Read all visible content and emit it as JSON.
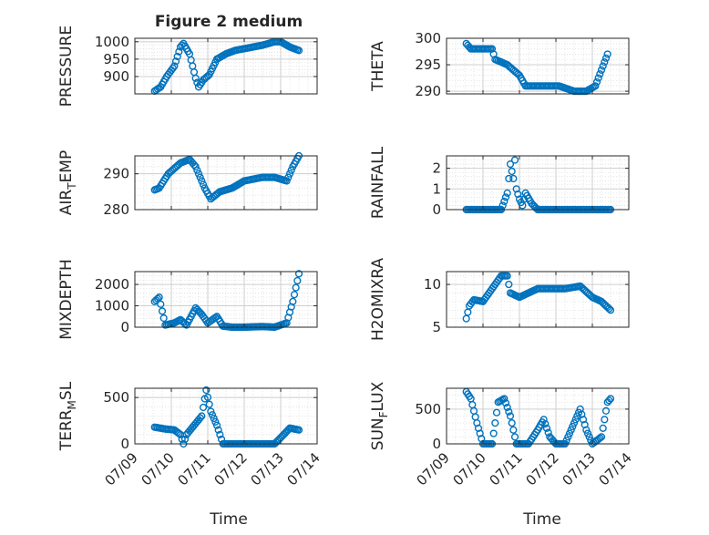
{
  "figure": {
    "title": "Figure 2 medium",
    "xlabel": "Time",
    "date_ticks": [
      "07/09",
      "07/10",
      "07/11",
      "07/12",
      "07/13",
      "07/14"
    ]
  },
  "colors": {
    "marker": "#0072BD",
    "axis": "#262626",
    "grid": "#dedede"
  },
  "chart_data": [
    {
      "type": "scatter",
      "id": "pressure",
      "ylabel": "PRESSURE",
      "ylim": [
        850,
        1010
      ],
      "yticks": [
        900,
        950,
        1000
      ],
      "xlim": [
        "07/09",
        "07/14"
      ],
      "points": [
        [
          "07/09 13:00",
          858
        ],
        [
          "07/09 17:00",
          870
        ],
        [
          "07/09 21:00",
          900
        ],
        [
          "07/10 02:00",
          930
        ],
        [
          "07/10 06:00",
          985
        ],
        [
          "07/10 08:00",
          995
        ],
        [
          "07/10 12:00",
          965
        ],
        [
          "07/10 16:00",
          895
        ],
        [
          "07/10 18:00",
          870
        ],
        [
          "07/10 21:00",
          890
        ],
        [
          "07/11 01:00",
          905
        ],
        [
          "07/11 06:00",
          950
        ],
        [
          "07/11 12:00",
          965
        ],
        [
          "07/11 18:00",
          975
        ],
        [
          "07/12 00:00",
          980
        ],
        [
          "07/12 12:00",
          990
        ],
        [
          "07/12 20:00",
          1000
        ],
        [
          "07/13 00:00",
          1000
        ],
        [
          "07/13 06:00",
          985
        ],
        [
          "07/13 12:00",
          975
        ]
      ]
    },
    {
      "type": "scatter",
      "id": "theta",
      "ylabel": "THETA",
      "ylim": [
        289.5,
        300
      ],
      "yticks": [
        290,
        295,
        300
      ],
      "xlim": [
        "07/09",
        "07/14"
      ],
      "points": [
        [
          "07/09 13:00",
          299
        ],
        [
          "07/09 16:00",
          298
        ],
        [
          "07/10 00:00",
          298
        ],
        [
          "07/10 06:00",
          298
        ],
        [
          "07/10 08:00",
          296
        ],
        [
          "07/10 16:00",
          295
        ],
        [
          "07/10 20:00",
          294
        ],
        [
          "07/11 00:00",
          293
        ],
        [
          "07/11 04:00",
          291
        ],
        [
          "07/11 12:00",
          291
        ],
        [
          "07/11 20:00",
          291
        ],
        [
          "07/12 02:00",
          291
        ],
        [
          "07/12 12:00",
          290
        ],
        [
          "07/12 20:00",
          290
        ],
        [
          "07/13 02:00",
          291
        ],
        [
          "07/13 06:00",
          294
        ],
        [
          "07/13 10:00",
          297
        ]
      ]
    },
    {
      "type": "scatter",
      "id": "air_temp",
      "ylabel": "AIR_TEMP",
      "ylim": [
        280,
        295
      ],
      "yticks": [
        280,
        290
      ],
      "xlim": [
        "07/09",
        "07/14"
      ],
      "points": [
        [
          "07/09 13:00",
          285.5
        ],
        [
          "07/09 16:00",
          286
        ],
        [
          "07/09 22:00",
          290
        ],
        [
          "07/10 06:00",
          293
        ],
        [
          "07/10 12:00",
          294
        ],
        [
          "07/10 16:00",
          292
        ],
        [
          "07/10 22:00",
          286
        ],
        [
          "07/11 02:00",
          283
        ],
        [
          "07/11 08:00",
          285
        ],
        [
          "07/11 16:00",
          286
        ],
        [
          "07/12 00:00",
          288
        ],
        [
          "07/12 12:00",
          289
        ],
        [
          "07/12 20:00",
          289
        ],
        [
          "07/13 04:00",
          288
        ],
        [
          "07/13 08:00",
          292
        ],
        [
          "07/13 12:00",
          295
        ]
      ]
    },
    {
      "type": "scatter",
      "id": "rainfall",
      "ylabel": "RAINFALL",
      "ylim": [
        0,
        2.6
      ],
      "yticks": [
        0,
        1,
        2
      ],
      "xlim": [
        "07/09",
        "07/14"
      ],
      "points": [
        [
          "07/09 13:00",
          0
        ],
        [
          "07/10 00:00",
          0
        ],
        [
          "07/10 12:00",
          0
        ],
        [
          "07/10 16:00",
          0.8
        ],
        [
          "07/10 18:00",
          2.2
        ],
        [
          "07/10 20:00",
          1.5
        ],
        [
          "07/10 21:00",
          2.4
        ],
        [
          "07/10 22:00",
          1.0
        ],
        [
          "07/11 00:00",
          0.5
        ],
        [
          "07/11 02:00",
          0.2
        ],
        [
          "07/11 04:00",
          0.8
        ],
        [
          "07/11 08:00",
          0.3
        ],
        [
          "07/11 12:00",
          0
        ],
        [
          "07/12 00:00",
          0
        ],
        [
          "07/12 12:00",
          0
        ],
        [
          "07/13 00:00",
          0
        ],
        [
          "07/13 12:00",
          0
        ]
      ]
    },
    {
      "type": "scatter",
      "id": "mixdepth",
      "ylabel": "MIXDEPTH",
      "ylim": [
        0,
        2600
      ],
      "yticks": [
        0,
        1000,
        2000
      ],
      "xlim": [
        "07/09",
        "07/14"
      ],
      "points": [
        [
          "07/09 13:00",
          1200
        ],
        [
          "07/09 16:00",
          1400
        ],
        [
          "07/09 20:00",
          100
        ],
        [
          "07/10 02:00",
          200
        ],
        [
          "07/10 06:00",
          350
        ],
        [
          "07/10 10:00",
          100
        ],
        [
          "07/10 16:00",
          900
        ],
        [
          "07/10 20:00",
          600
        ],
        [
          "07/11 00:00",
          200
        ],
        [
          "07/11 06:00",
          500
        ],
        [
          "07/11 10:00",
          50
        ],
        [
          "07/11 16:00",
          0
        ],
        [
          "07/12 00:00",
          0
        ],
        [
          "07/12 12:00",
          30
        ],
        [
          "07/12 20:00",
          0
        ],
        [
          "07/13 04:00",
          200
        ],
        [
          "07/13 08:00",
          1200
        ],
        [
          "07/13 12:00",
          2500
        ]
      ]
    },
    {
      "type": "scatter",
      "id": "h2omixra",
      "ylabel": "H2OMIXRA",
      "ylim": [
        5,
        11.5
      ],
      "yticks": [
        5,
        10
      ],
      "xlim": [
        "07/09",
        "07/14"
      ],
      "points": [
        [
          "07/09 13:00",
          6
        ],
        [
          "07/09 15:00",
          7.5
        ],
        [
          "07/09 18:00",
          8.2
        ],
        [
          "07/10 00:00",
          8
        ],
        [
          "07/10 06:00",
          9.5
        ],
        [
          "07/10 12:00",
          11
        ],
        [
          "07/10 16:00",
          11
        ],
        [
          "07/10 18:00",
          9
        ],
        [
          "07/11 00:00",
          8.5
        ],
        [
          "07/11 06:00",
          9
        ],
        [
          "07/11 12:00",
          9.5
        ],
        [
          "07/11 20:00",
          9.5
        ],
        [
          "07/12 06:00",
          9.5
        ],
        [
          "07/12 16:00",
          9.8
        ],
        [
          "07/13 00:00",
          8.5
        ],
        [
          "07/13 06:00",
          8
        ],
        [
          "07/13 12:00",
          7
        ]
      ]
    },
    {
      "type": "scatter",
      "id": "terr_msl",
      "ylabel": "TERR_MSL",
      "ylim": [
        0,
        600
      ],
      "yticks": [
        0,
        500
      ],
      "xlim": [
        "07/09",
        "07/14"
      ],
      "points": [
        [
          "07/09 13:00",
          180
        ],
        [
          "07/09 20:00",
          160
        ],
        [
          "07/10 02:00",
          150
        ],
        [
          "07/10 06:00",
          100
        ],
        [
          "07/10 08:00",
          0
        ],
        [
          "07/10 10:00",
          100
        ],
        [
          "07/10 14:00",
          180
        ],
        [
          "07/10 20:00",
          300
        ],
        [
          "07/10 23:00",
          580
        ],
        [
          "07/11 02:00",
          350
        ],
        [
          "07/11 06:00",
          200
        ],
        [
          "07/11 10:00",
          0
        ],
        [
          "07/12 00:00",
          0
        ],
        [
          "07/12 20:00",
          0
        ],
        [
          "07/13 02:00",
          100
        ],
        [
          "07/13 06:00",
          170
        ],
        [
          "07/13 12:00",
          150
        ]
      ]
    },
    {
      "type": "scatter",
      "id": "sun_flux",
      "ylabel": "SUN_FLUX",
      "ylim": [
        0,
        800
      ],
      "yticks": [
        0,
        500
      ],
      "xlim": [
        "07/09",
        "07/14"
      ],
      "points": [
        [
          "07/09 13:00",
          750
        ],
        [
          "07/09 16:00",
          650
        ],
        [
          "07/09 20:00",
          300
        ],
        [
          "07/10 00:00",
          0
        ],
        [
          "07/10 06:00",
          0
        ],
        [
          "07/10 10:00",
          600
        ],
        [
          "07/10 14:00",
          650
        ],
        [
          "07/10 18:00",
          400
        ],
        [
          "07/10 22:00",
          0
        ],
        [
          "07/11 06:00",
          0
        ],
        [
          "07/11 12:00",
          200
        ],
        [
          "07/11 16:00",
          350
        ],
        [
          "07/11 20:00",
          100
        ],
        [
          "07/12 00:00",
          0
        ],
        [
          "07/12 06:00",
          0
        ],
        [
          "07/12 12:00",
          300
        ],
        [
          "07/12 16:00",
          500
        ],
        [
          "07/12 20:00",
          200
        ],
        [
          "07/13 00:00",
          0
        ],
        [
          "07/13 06:00",
          100
        ],
        [
          "07/13 10:00",
          600
        ],
        [
          "07/13 12:00",
          650
        ]
      ]
    }
  ]
}
